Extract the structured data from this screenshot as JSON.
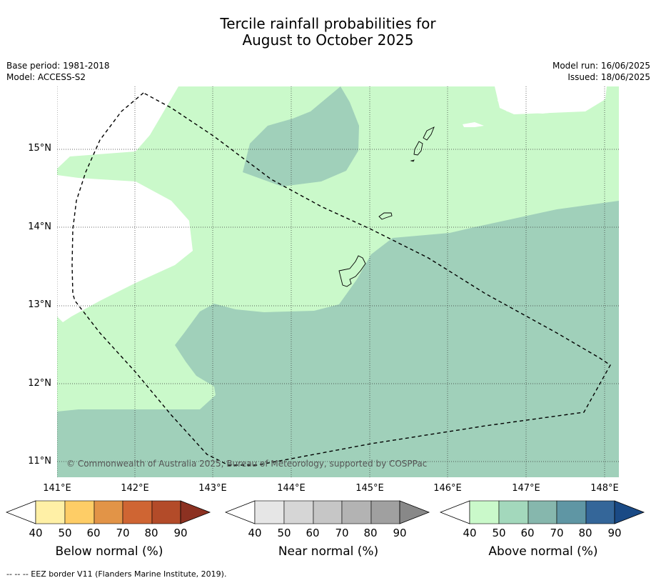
{
  "title_line1": "Tercile rainfall probabilities for",
  "title_line2": "August to October 2025",
  "base_period": "Base period: 1981-2018",
  "model": "Model: ACCESS-S2",
  "model_run": "Model run: 16/06/2025",
  "issued": "Issued: 18/06/2025",
  "latitudes": [
    "15°N",
    "14°N",
    "13°N",
    "12°N",
    "11°N"
  ],
  "longitudes": [
    "141°E",
    "142°E",
    "143°E",
    "144°E",
    "145°E",
    "146°E",
    "147°E",
    "148°E"
  ],
  "copyright": "© Commonwealth of Australia 2025, Bureau of Meteorology, supported by COSPPac",
  "legend_ticks": [
    "40",
    "50",
    "60",
    "70",
    "80",
    "90"
  ],
  "legends": [
    {
      "title": "Below normal (%)",
      "colors": [
        "#fff0a6",
        "#fecd66",
        "#e29447",
        "#cf6533",
        "#b34b29",
        "#8c3121"
      ]
    },
    {
      "title": "Near normal (%)",
      "colors": [
        "#e6e6e6",
        "#d6d6d6",
        "#c6c6c6",
        "#b3b3b3",
        "#a0a0a0",
        "#888888"
      ]
    },
    {
      "title": "Above normal (%)",
      "colors": [
        "#caf9ca",
        "#a3d8bc",
        "#86b7ad",
        "#5f96a4",
        "#346699",
        "#1a4a85"
      ]
    }
  ],
  "map_colors": {
    "above_40_50": "#caf9ca",
    "above_50_60": "#a0d0ba",
    "land_outline": "#000000"
  },
  "footnote": "--  --  -- EEZ border V11 (Flanders Marine Institute, 2019)."
}
